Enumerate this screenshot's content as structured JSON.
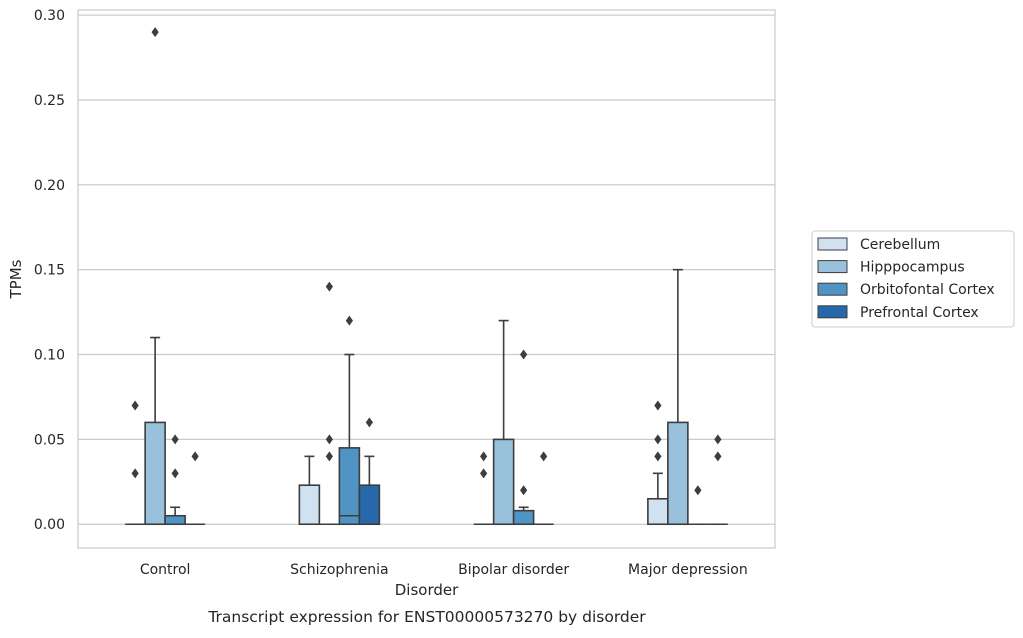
{
  "chart_data": {
    "type": "box",
    "xlabel": "Disorder",
    "ylabel": "TPMs",
    "caption": "Transcript expression for ENST00000573270 by disorder",
    "ylim": [
      -0.014,
      0.303
    ],
    "yticks": [
      0.0,
      0.05,
      0.1,
      0.15,
      0.2,
      0.25,
      0.3
    ],
    "ytick_labels": [
      "0.00",
      "0.05",
      "0.10",
      "0.15",
      "0.20",
      "0.25",
      "0.30"
    ],
    "grid": "horizontal",
    "legend_position": "right",
    "categories": [
      "Control",
      "Schizophrenia",
      "Bipolar disorder",
      "Major depression"
    ],
    "series": [
      {
        "name": "Cerebellum",
        "color": "#d0e1f2",
        "boxes": [
          {
            "q1": 0.0,
            "median": 0.0,
            "q3": 0.0,
            "whisker_low": 0.0,
            "whisker_high": 0.0,
            "outliers": [
              0.03,
              0.07
            ]
          },
          {
            "q1": 0.0,
            "median": 0.0,
            "q3": 0.023,
            "whisker_low": 0.0,
            "whisker_high": 0.04,
            "outliers": []
          },
          {
            "q1": 0.0,
            "median": 0.0,
            "q3": 0.0,
            "whisker_low": 0.0,
            "whisker_high": 0.0,
            "outliers": [
              0.03,
              0.04
            ]
          },
          {
            "q1": 0.0,
            "median": 0.0,
            "q3": 0.015,
            "whisker_low": 0.0,
            "whisker_high": 0.03,
            "outliers": [
              0.04,
              0.05,
              0.07
            ]
          }
        ]
      },
      {
        "name": "Hipppocampus",
        "color": "#9ac1db",
        "boxes": [
          {
            "q1": 0.0,
            "median": 0.0,
            "q3": 0.06,
            "whisker_low": 0.0,
            "whisker_high": 0.11,
            "outliers": [
              0.29
            ]
          },
          {
            "q1": 0.0,
            "median": 0.0,
            "q3": 0.0,
            "whisker_low": 0.0,
            "whisker_high": 0.0,
            "outliers": [
              0.04,
              0.05,
              0.14
            ]
          },
          {
            "q1": 0.0,
            "median": 0.0,
            "q3": 0.05,
            "whisker_low": 0.0,
            "whisker_high": 0.12,
            "outliers": []
          },
          {
            "q1": 0.0,
            "median": 0.0,
            "q3": 0.06,
            "whisker_low": 0.0,
            "whisker_high": 0.15,
            "outliers": []
          }
        ]
      },
      {
        "name": "Orbitofontal Cortex",
        "color": "#5093c5",
        "boxes": [
          {
            "q1": 0.0,
            "median": 0.0,
            "q3": 0.005,
            "whisker_low": 0.0,
            "whisker_high": 0.01,
            "outliers": [
              0.03,
              0.05
            ]
          },
          {
            "q1": 0.0,
            "median": 0.005,
            "q3": 0.045,
            "whisker_low": 0.0,
            "whisker_high": 0.1,
            "outliers": [
              0.12
            ]
          },
          {
            "q1": 0.0,
            "median": 0.0,
            "q3": 0.008,
            "whisker_low": 0.0,
            "whisker_high": 0.01,
            "outliers": [
              0.02,
              0.1
            ]
          },
          {
            "q1": 0.0,
            "median": 0.0,
            "q3": 0.0,
            "whisker_low": 0.0,
            "whisker_high": 0.0,
            "outliers": [
              0.02
            ]
          }
        ]
      },
      {
        "name": "Prefrontal Cortex",
        "color": "#2668a9",
        "boxes": [
          {
            "q1": 0.0,
            "median": 0.0,
            "q3": 0.0,
            "whisker_low": 0.0,
            "whisker_high": 0.0,
            "outliers": [
              0.04
            ]
          },
          {
            "q1": 0.0,
            "median": 0.0,
            "q3": 0.023,
            "whisker_low": 0.0,
            "whisker_high": 0.04,
            "outliers": [
              0.06
            ]
          },
          {
            "q1": 0.0,
            "median": 0.0,
            "q3": 0.0,
            "whisker_low": 0.0,
            "whisker_high": 0.0,
            "outliers": [
              0.04
            ]
          },
          {
            "q1": 0.0,
            "median": 0.0,
            "q3": 0.0,
            "whisker_low": 0.0,
            "whisker_high": 0.0,
            "outliers": [
              0.04,
              0.05
            ]
          }
        ]
      }
    ]
  }
}
